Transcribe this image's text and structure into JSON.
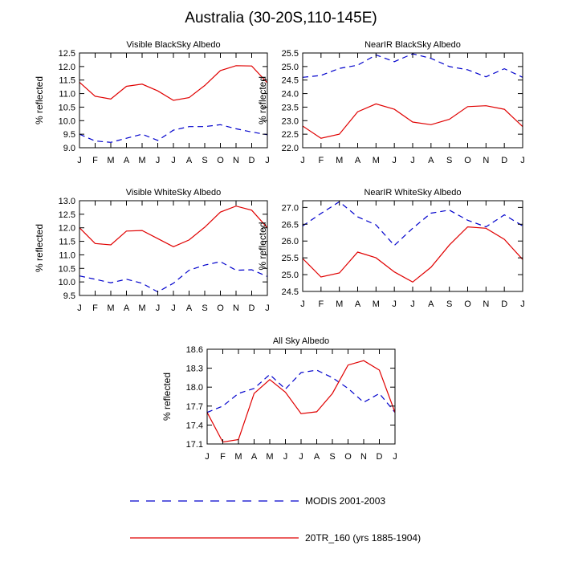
{
  "title": "Australia (30-20S,110-145E)",
  "colors": {
    "modis": "#0000cc",
    "model": "#e00000"
  },
  "legend": [
    {
      "name": "MODIS 2001-2003",
      "style": "dashed",
      "color": "#0000cc"
    },
    {
      "name": "20TR_160 (yrs 1885-1904)",
      "style": "solid",
      "color": "#e00000"
    }
  ],
  "chart_data": [
    {
      "type": "line",
      "title": "Visible BlackSky Albedo",
      "ylabel": "% reflected",
      "x": [
        "J",
        "F",
        "M",
        "A",
        "M",
        "J",
        "J",
        "A",
        "S",
        "O",
        "N",
        "D",
        "J"
      ],
      "ylim": [
        9.0,
        12.5
      ],
      "yticks": [
        "9.0",
        "9.5",
        "10.0",
        "10.5",
        "11.0",
        "11.5",
        "12.0",
        "12.5"
      ],
      "series": [
        {
          "name": "MODIS 2001-2003",
          "values": [
            9.5,
            9.25,
            9.2,
            9.35,
            9.5,
            9.27,
            9.65,
            9.78,
            9.78,
            9.85,
            9.7,
            9.58,
            9.48
          ]
        },
        {
          "name": "20TR_160 (yrs 1885-1904)",
          "values": [
            11.42,
            10.9,
            10.8,
            11.27,
            11.35,
            11.1,
            10.75,
            10.85,
            11.3,
            11.85,
            12.03,
            12.02,
            11.4
          ]
        }
      ]
    },
    {
      "type": "line",
      "title": "NearIR BlackSky Albedo",
      "ylabel": "% reflected",
      "x": [
        "J",
        "F",
        "M",
        "A",
        "M",
        "J",
        "J",
        "A",
        "S",
        "O",
        "N",
        "D",
        "J"
      ],
      "ylim": [
        22.0,
        25.5
      ],
      "yticks": [
        "22.0",
        "22.5",
        "23.0",
        "23.5",
        "24.0",
        "24.5",
        "25.0",
        "25.5"
      ],
      "series": [
        {
          "name": "MODIS 2001-2003",
          "values": [
            24.6,
            24.67,
            24.93,
            25.05,
            25.43,
            25.18,
            25.47,
            25.3,
            25.0,
            24.88,
            24.62,
            24.92,
            24.6
          ]
        },
        {
          "name": "20TR_160 (yrs 1885-1904)",
          "values": [
            22.8,
            22.35,
            22.5,
            23.33,
            23.62,
            23.42,
            22.95,
            22.85,
            23.05,
            23.52,
            23.55,
            23.42,
            22.78
          ]
        }
      ]
    },
    {
      "type": "line",
      "title": "Visible WhiteSky Albedo",
      "ylabel": "% reflected",
      "x": [
        "J",
        "F",
        "M",
        "A",
        "M",
        "J",
        "J",
        "A",
        "S",
        "O",
        "N",
        "D",
        "J"
      ],
      "ylim": [
        9.5,
        13.0
      ],
      "yticks": [
        "9.5",
        "10.0",
        "10.5",
        "11.0",
        "11.5",
        "12.0",
        "12.5",
        "13.0"
      ],
      "series": [
        {
          "name": "MODIS 2001-2003",
          "values": [
            10.22,
            10.1,
            9.97,
            10.1,
            9.95,
            9.63,
            9.95,
            10.43,
            10.62,
            10.75,
            10.43,
            10.45,
            10.2
          ]
        },
        {
          "name": "20TR_160 (yrs 1885-1904)",
          "values": [
            12.0,
            11.42,
            11.37,
            11.88,
            11.9,
            11.6,
            11.3,
            11.55,
            12.02,
            12.58,
            12.8,
            12.65,
            12.0
          ]
        }
      ]
    },
    {
      "type": "line",
      "title": "NearIR WhiteSky Albedo",
      "ylabel": "% reflected",
      "x": [
        "J",
        "F",
        "M",
        "A",
        "M",
        "J",
        "J",
        "A",
        "S",
        "O",
        "N",
        "D",
        "J"
      ],
      "ylim": [
        24.5,
        27.2
      ],
      "yticks": [
        "24.5",
        "25.0",
        "25.5",
        "26.0",
        "26.5",
        "27.0"
      ],
      "series": [
        {
          "name": "MODIS 2001-2003",
          "values": [
            26.45,
            26.82,
            27.17,
            26.72,
            26.48,
            25.87,
            26.38,
            26.83,
            26.92,
            26.62,
            26.42,
            26.78,
            26.45
          ]
        },
        {
          "name": "20TR_160 (yrs 1885-1904)",
          "values": [
            25.48,
            24.93,
            25.05,
            25.67,
            25.5,
            25.08,
            24.78,
            25.22,
            25.88,
            26.42,
            26.38,
            26.05,
            25.45
          ]
        }
      ]
    },
    {
      "type": "line",
      "title": "All Sky Albedo",
      "ylabel": "% reflected",
      "x": [
        "J",
        "F",
        "M",
        "A",
        "M",
        "J",
        "J",
        "A",
        "S",
        "O",
        "N",
        "D",
        "J"
      ],
      "ylim": [
        17.1,
        18.6
      ],
      "yticks": [
        "17.1",
        "17.4",
        "17.7",
        "18.0",
        "18.3",
        "18.6"
      ],
      "series": [
        {
          "name": "MODIS 2001-2003",
          "values": [
            17.6,
            17.7,
            17.9,
            17.98,
            18.2,
            17.97,
            18.23,
            18.27,
            18.15,
            17.98,
            17.76,
            17.9,
            17.6
          ]
        },
        {
          "name": "20TR_160 (yrs 1885-1904)",
          "values": [
            17.6,
            17.13,
            17.17,
            17.9,
            18.12,
            17.92,
            17.58,
            17.61,
            17.9,
            18.35,
            18.42,
            18.27,
            17.6
          ]
        }
      ]
    }
  ]
}
